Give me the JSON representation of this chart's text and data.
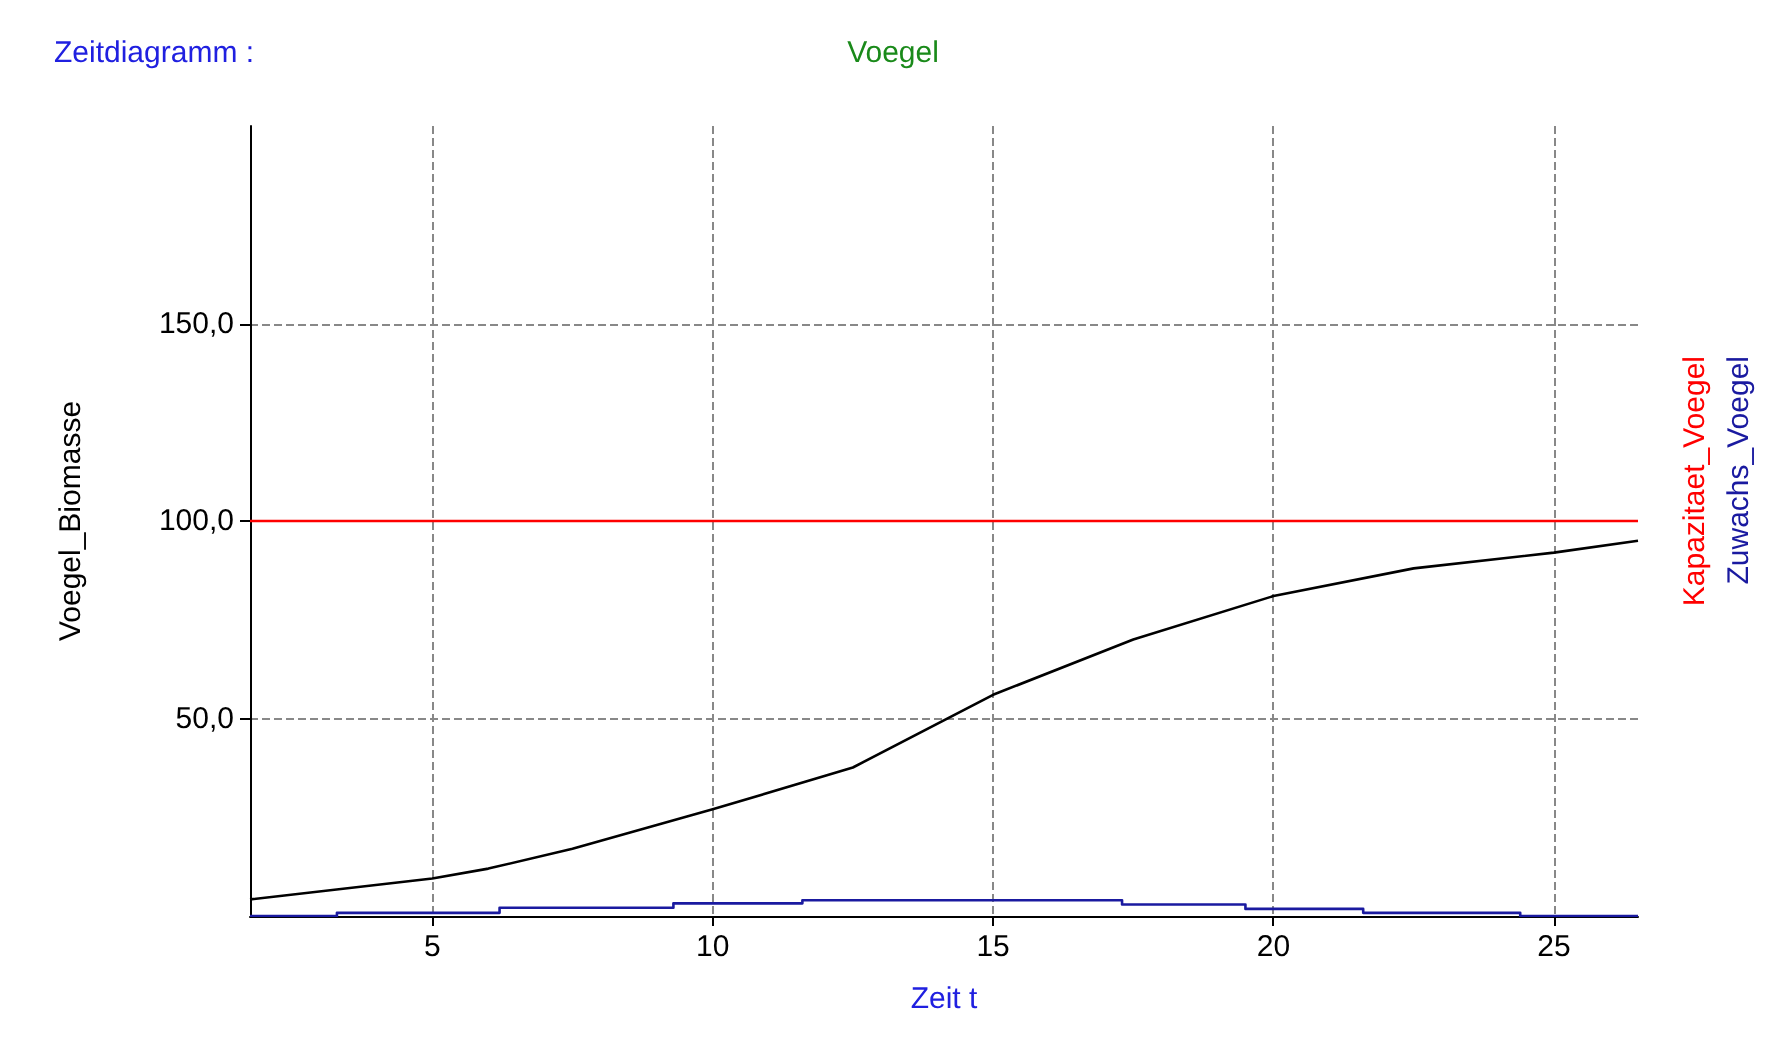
{
  "chart_data": {
    "type": "line",
    "title": "Voegel",
    "subtitle": "Zeitdiagramm :",
    "xlabel": "Zeit t",
    "ylabel": "Voegel_Biomasse",
    "xlim": [
      1.75,
      26.5
    ],
    "xticks": [
      5,
      10,
      15,
      20,
      25
    ],
    "ylim": [
      0,
      200
    ],
    "yticks": [
      {
        "value": 50,
        "label": "50,0"
      },
      {
        "value": 100,
        "label": "100,0"
      },
      {
        "value": 150,
        "label": "150,0"
      }
    ],
    "grid": true,
    "legend": "right",
    "marker": "none",
    "line_style": "solid",
    "series": [
      {
        "color": "#000000",
        "x": [
          1.75,
          5,
          6,
          7.5,
          10,
          12.5,
          15,
          17.5,
          20,
          22.5,
          25,
          26.5
        ],
        "values": [
          4.2,
          9.5,
          12,
          17,
          27,
          37.6,
          56,
          70,
          81,
          88,
          92,
          95
        ]
      },
      {
        "name": "Kapazitaet_Voegel",
        "color": "#ff0000",
        "x": [
          1.75,
          26.5
        ],
        "values": [
          100,
          100
        ]
      },
      {
        "name": "Zuwachs_Voegel",
        "type": "step",
        "color": "#1a1aa0",
        "x": [
          1.75,
          3.3,
          6.2,
          9.3,
          11.6,
          17.3,
          19.5,
          21.6,
          24.4,
          26.5
        ],
        "values": [
          0,
          0.8,
          2.1,
          3.2,
          4,
          2.9,
          1.8,
          0.8,
          0,
          0
        ]
      }
    ]
  }
}
